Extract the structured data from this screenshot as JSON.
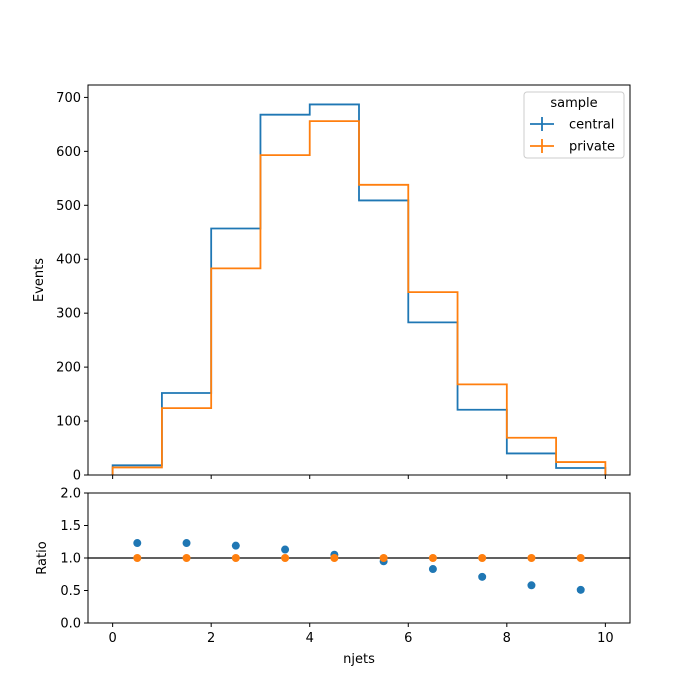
{
  "chart_data": [
    {
      "type": "line",
      "panel": "main",
      "xlabel": "",
      "ylabel": "Events",
      "xlim": [
        -0.5,
        10.5
      ],
      "ylim": [
        0,
        723
      ],
      "x_ticks": [
        0,
        2,
        4,
        6,
        8,
        10
      ],
      "y_ticks": [
        0,
        100,
        200,
        300,
        400,
        500,
        600,
        700
      ],
      "bin_edges": [
        0,
        1,
        2,
        3,
        4,
        5,
        6,
        7,
        8,
        9,
        10
      ],
      "legend": {
        "title": "sample",
        "placement": "top-right"
      },
      "series": [
        {
          "name": "central",
          "color": "#1f77b4",
          "values": [
            18,
            152,
            457,
            668,
            687,
            509,
            283,
            121,
            40,
            13
          ]
        },
        {
          "name": "private",
          "color": "#ff7f0e",
          "values": [
            14,
            124,
            383,
            593,
            656,
            538,
            339,
            168,
            69,
            24
          ]
        }
      ]
    },
    {
      "type": "scatter",
      "panel": "ratio",
      "xlabel": "njets",
      "ylabel": "Ratio",
      "xlim": [
        -0.5,
        10.5
      ],
      "ylim": [
        0,
        2
      ],
      "x_ticks": [
        0,
        2,
        4,
        6,
        8,
        10
      ],
      "y_ticks": [
        0.0,
        0.5,
        1.0,
        1.5,
        2.0
      ],
      "reference_line": 1.0,
      "x": [
        0.5,
        1.5,
        2.5,
        3.5,
        4.5,
        5.5,
        6.5,
        7.5,
        8.5,
        9.5
      ],
      "series": [
        {
          "name": "central",
          "color": "#1f77b4",
          "values": [
            1.23,
            1.23,
            1.19,
            1.13,
            1.05,
            0.95,
            0.83,
            0.71,
            0.58,
            0.51
          ]
        },
        {
          "name": "private",
          "color": "#ff7f0e",
          "values": [
            1,
            1,
            1,
            1,
            1,
            1,
            1,
            1,
            1,
            1
          ]
        }
      ]
    }
  ]
}
